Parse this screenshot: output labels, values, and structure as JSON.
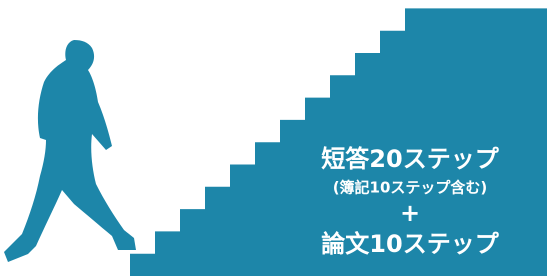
{
  "banner": {
    "line1": "短答20ステップ",
    "line2": "(簿記10ステップ含む)",
    "plus": "+",
    "line3": "論文10ステップ"
  }
}
